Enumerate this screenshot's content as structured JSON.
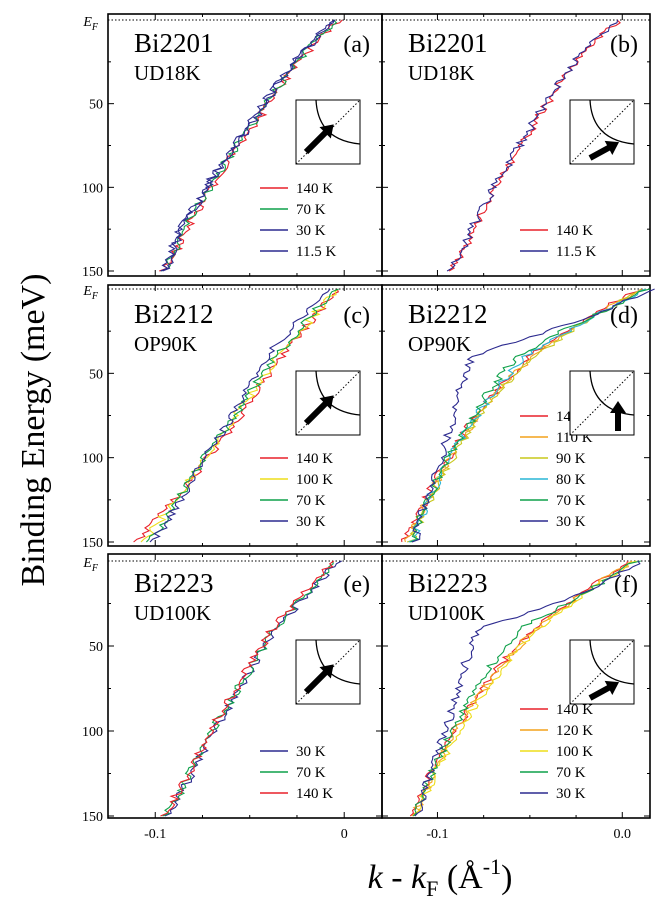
{
  "figure": {
    "y_axis_label": "Binding Energy (meV)",
    "x_axis_label": {
      "k": "k",
      "minus": " - ",
      "kF_base": "k",
      "kF_sub": "F",
      "units_open": " (Å",
      "units_sup": "-1",
      "units_close": ")"
    },
    "ef_label": {
      "base": "E",
      "sub": "F"
    }
  },
  "colors": {
    "140 K": "#e8202a",
    "120 K": "#f4a21c",
    "110 K": "#f4a21c",
    "100 K": "#eedd1a",
    "90 K": "#c9c81c",
    "80 K": "#29b5d6",
    "70 K": "#0fa14a",
    "30 K": "#2c2a8f",
    "11.5 K": "#2c2a8f"
  },
  "chart_data": [
    {
      "type": "line",
      "panel": "(a)",
      "sample": "Bi2201",
      "doping": "UD18K",
      "column": "left",
      "row": 0,
      "arrow": "diag-node",
      "series": [
        {
          "name": "140 K",
          "x": [
            -0.003,
            -0.012,
            -0.024,
            -0.037,
            -0.049,
            -0.062,
            -0.073,
            -0.082,
            -0.089,
            -0.096
          ],
          "y": [
            0,
            10,
            25,
            45,
            65,
            85,
            105,
            122,
            138,
            150
          ]
        },
        {
          "name": "70 K",
          "x": [
            -0.004,
            -0.013,
            -0.025,
            -0.038,
            -0.05,
            -0.063,
            -0.074,
            -0.083,
            -0.09,
            -0.095
          ],
          "y": [
            0,
            10,
            25,
            45,
            65,
            85,
            105,
            122,
            138,
            150
          ]
        },
        {
          "name": "30 K",
          "x": [
            -0.005,
            -0.014,
            -0.026,
            -0.039,
            -0.051,
            -0.064,
            -0.075,
            -0.084,
            -0.091,
            -0.094
          ],
          "y": [
            0,
            10,
            25,
            45,
            65,
            85,
            105,
            122,
            138,
            150
          ]
        },
        {
          "name": "11.5 K",
          "x": [
            -0.006,
            -0.015,
            -0.027,
            -0.04,
            -0.052,
            -0.065,
            -0.076,
            -0.085,
            -0.092,
            -0.095
          ],
          "y": [
            0,
            10,
            25,
            45,
            65,
            85,
            105,
            122,
            138,
            150
          ]
        }
      ]
    },
    {
      "type": "line",
      "panel": "(b)",
      "sample": "Bi2201",
      "doping": "UD18K",
      "column": "right",
      "row": 0,
      "arrow": "diag-off",
      "series": [
        {
          "name": "140 K",
          "x": [
            -0.001,
            -0.012,
            -0.025,
            -0.038,
            -0.049,
            -0.06,
            -0.071,
            -0.079,
            -0.086,
            -0.092
          ],
          "y": [
            0,
            10,
            25,
            45,
            65,
            85,
            105,
            122,
            138,
            150
          ]
        },
        {
          "name": "11.5 K",
          "x": [
            -0.002,
            -0.013,
            -0.026,
            -0.039,
            -0.05,
            -0.061,
            -0.072,
            -0.08,
            -0.087,
            -0.093
          ],
          "y": [
            0,
            10,
            25,
            45,
            65,
            85,
            105,
            122,
            138,
            150
          ]
        }
      ]
    },
    {
      "type": "line",
      "panel": "(c)",
      "sample": "Bi2212",
      "doping": "OP90K",
      "column": "left",
      "row": 1,
      "arrow": "diag-node",
      "series": [
        {
          "name": "140 K",
          "x": [
            -0.003,
            -0.011,
            -0.022,
            -0.033,
            -0.046,
            -0.058,
            -0.072,
            -0.086,
            -0.1,
            -0.11
          ],
          "y": [
            0,
            10,
            25,
            40,
            60,
            80,
            100,
            120,
            138,
            150
          ]
        },
        {
          "name": "100 K",
          "x": [
            -0.004,
            -0.012,
            -0.023,
            -0.035,
            -0.048,
            -0.06,
            -0.073,
            -0.086,
            -0.098,
            -0.106
          ],
          "y": [
            0,
            10,
            25,
            40,
            60,
            80,
            100,
            120,
            138,
            150
          ]
        },
        {
          "name": "70 K",
          "x": [
            -0.005,
            -0.013,
            -0.024,
            -0.036,
            -0.049,
            -0.061,
            -0.074,
            -0.085,
            -0.096,
            -0.103
          ],
          "y": [
            0,
            10,
            25,
            40,
            60,
            80,
            100,
            120,
            138,
            150
          ]
        },
        {
          "name": "30 K",
          "x": [
            -0.006,
            -0.016,
            -0.029,
            -0.041,
            -0.052,
            -0.062,
            -0.074,
            -0.084,
            -0.094,
            -0.101
          ],
          "y": [
            0,
            10,
            25,
            40,
            60,
            80,
            100,
            120,
            138,
            150
          ]
        }
      ]
    },
    {
      "type": "line",
      "panel": "(d)",
      "sample": "Bi2212",
      "doping": "OP90K",
      "column": "right",
      "row": 1,
      "arrow": "vertical",
      "series": [
        {
          "name": "140 K",
          "x": [
            0.01,
            -0.008,
            -0.03,
            -0.05,
            -0.068,
            -0.082,
            -0.094,
            -0.104,
            -0.112,
            -0.118
          ],
          "y": [
            0,
            10,
            25,
            40,
            60,
            80,
            100,
            120,
            138,
            150
          ]
        },
        {
          "name": "110 K",
          "x": [
            0.011,
            -0.007,
            -0.029,
            -0.049,
            -0.067,
            -0.081,
            -0.093,
            -0.103,
            -0.111,
            -0.116
          ],
          "y": [
            0,
            10,
            25,
            40,
            60,
            80,
            100,
            120,
            138,
            150
          ]
        },
        {
          "name": "90 K",
          "x": [
            0.012,
            -0.006,
            -0.028,
            -0.048,
            -0.066,
            -0.08,
            -0.092,
            -0.102,
            -0.11,
            -0.115
          ],
          "y": [
            0,
            10,
            25,
            40,
            60,
            80,
            100,
            120,
            138,
            150
          ]
        },
        {
          "name": "80 K",
          "x": [
            0.013,
            -0.005,
            -0.03,
            -0.052,
            -0.069,
            -0.082,
            -0.093,
            -0.103,
            -0.11,
            -0.114
          ],
          "y": [
            0,
            10,
            25,
            40,
            60,
            80,
            100,
            120,
            138,
            150
          ]
        },
        {
          "name": "70 K",
          "x": [
            0.014,
            -0.004,
            -0.033,
            -0.057,
            -0.072,
            -0.083,
            -0.094,
            -0.103,
            -0.11,
            -0.113
          ],
          "y": [
            0,
            10,
            25,
            40,
            60,
            80,
            100,
            120,
            138,
            150
          ]
        },
        {
          "name": "30 K",
          "x": [
            0.015,
            -0.003,
            -0.04,
            -0.082,
            -0.088,
            -0.092,
            -0.098,
            -0.105,
            -0.11,
            -0.112
          ],
          "y": [
            0,
            10,
            25,
            40,
            60,
            80,
            100,
            120,
            138,
            150
          ]
        }
      ]
    },
    {
      "type": "line",
      "panel": "(e)",
      "sample": "Bi2223",
      "doping": "UD100K",
      "column": "left",
      "row": 2,
      "arrow": "diag-node",
      "series": [
        {
          "name": "30 K",
          "x": [
            -0.003,
            -0.012,
            -0.024,
            -0.036,
            -0.047,
            -0.058,
            -0.069,
            -0.078,
            -0.087,
            -0.094
          ],
          "y": [
            0,
            10,
            25,
            40,
            60,
            80,
            100,
            120,
            138,
            150
          ]
        },
        {
          "name": "70 K",
          "x": [
            -0.004,
            -0.013,
            -0.025,
            -0.037,
            -0.048,
            -0.059,
            -0.07,
            -0.079,
            -0.088,
            -0.095
          ],
          "y": [
            0,
            10,
            25,
            40,
            60,
            80,
            100,
            120,
            138,
            150
          ]
        },
        {
          "name": "140 K",
          "x": [
            -0.005,
            -0.014,
            -0.026,
            -0.038,
            -0.049,
            -0.06,
            -0.071,
            -0.08,
            -0.089,
            -0.096
          ],
          "y": [
            0,
            10,
            25,
            40,
            60,
            80,
            100,
            120,
            138,
            150
          ]
        }
      ]
    },
    {
      "type": "line",
      "panel": "(f)",
      "sample": "Bi2223",
      "doping": "UD100K",
      "column": "right",
      "row": 2,
      "arrow": "diag-off",
      "series": [
        {
          "name": "140 K",
          "x": [
            0.005,
            -0.01,
            -0.03,
            -0.048,
            -0.065,
            -0.079,
            -0.091,
            -0.101,
            -0.109,
            -0.114
          ],
          "y": [
            0,
            10,
            25,
            40,
            60,
            80,
            100,
            120,
            138,
            150
          ]
        },
        {
          "name": "120 K",
          "x": [
            0.006,
            -0.009,
            -0.029,
            -0.047,
            -0.064,
            -0.078,
            -0.09,
            -0.1,
            -0.108,
            -0.113
          ],
          "y": [
            0,
            10,
            25,
            40,
            60,
            80,
            100,
            120,
            138,
            150
          ]
        },
        {
          "name": "100 K",
          "x": [
            0.007,
            -0.008,
            -0.028,
            -0.046,
            -0.063,
            -0.077,
            -0.089,
            -0.099,
            -0.107,
            -0.112
          ],
          "y": [
            0,
            10,
            25,
            40,
            60,
            80,
            100,
            120,
            138,
            150
          ]
        },
        {
          "name": "70 K",
          "x": [
            0.008,
            -0.007,
            -0.03,
            -0.055,
            -0.07,
            -0.082,
            -0.092,
            -0.101,
            -0.108,
            -0.112
          ],
          "y": [
            0,
            10,
            25,
            40,
            60,
            80,
            100,
            120,
            138,
            150
          ]
        },
        {
          "name": "30 K",
          "x": [
            0.01,
            -0.005,
            -0.035,
            -0.078,
            -0.085,
            -0.09,
            -0.096,
            -0.103,
            -0.108,
            -0.111
          ],
          "y": [
            0,
            10,
            25,
            40,
            60,
            80,
            100,
            120,
            138,
            150
          ]
        }
      ]
    }
  ],
  "axes": {
    "y_ticks": [
      50,
      100,
      150
    ],
    "y_range": [
      0,
      150
    ],
    "left_x_range": [
      -0.125,
      0.02
    ],
    "right_x_range": [
      -0.13,
      0.015
    ],
    "left_x_ticks": [
      {
        "v": -0.1,
        "label": "-0.1"
      },
      {
        "v": 0,
        "label": "0"
      }
    ],
    "right_x_ticks": [
      {
        "v": -0.1,
        "label": "-0.1"
      },
      {
        "v": 0,
        "label": "0.0"
      }
    ]
  }
}
